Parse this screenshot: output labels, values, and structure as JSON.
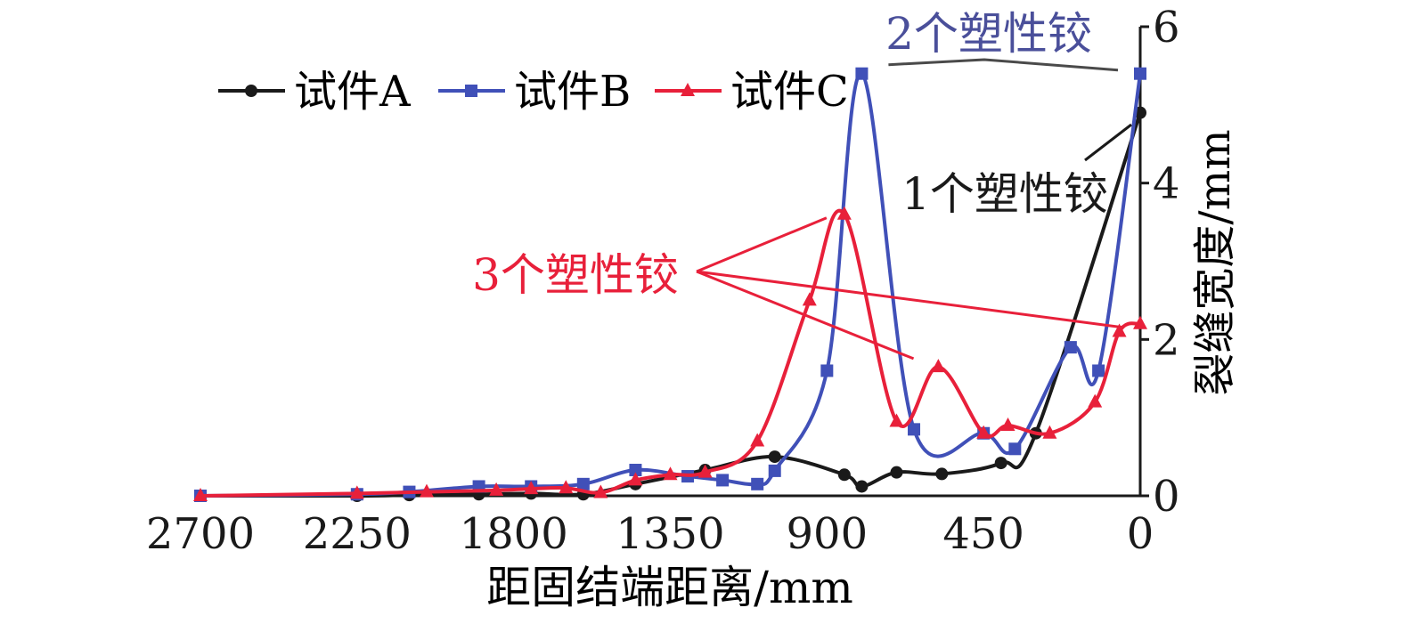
{
  "chart_data": {
    "type": "line",
    "title": "",
    "xlabel": "距固结端距离/mm",
    "ylabel": "裂缝宽度/mm",
    "xlim": [
      2700,
      0
    ],
    "ylim": [
      0,
      6
    ],
    "x_ticks": [
      "2700",
      "2250",
      "1800",
      "1350",
      "900",
      "450",
      "0"
    ],
    "y_ticks": [
      "0",
      "2",
      "4",
      "6"
    ],
    "x_tick_values": [
      2700,
      2250,
      1800,
      1350,
      900,
      450,
      0
    ],
    "y_tick_values": [
      0,
      2,
      4,
      6
    ],
    "grid": false,
    "legend_position": "top-left",
    "series": [
      {
        "name": "试件A",
        "color": "#1a1a1a",
        "marker": "circle",
        "points": [
          [
            2700,
            0.0
          ],
          [
            2250,
            0.0
          ],
          [
            2100,
            0.01
          ],
          [
            1900,
            0.02
          ],
          [
            1750,
            0.03
          ],
          [
            1600,
            0.02
          ],
          [
            1450,
            0.15
          ],
          [
            1250,
            0.33
          ],
          [
            1050,
            0.5
          ],
          [
            850,
            0.27
          ],
          [
            800,
            0.12
          ],
          [
            700,
            0.3
          ],
          [
            570,
            0.28
          ],
          [
            400,
            0.42
          ],
          [
            300,
            0.8
          ],
          [
            0,
            4.9
          ]
        ]
      },
      {
        "name": "试件B",
        "color": "#4050b8",
        "marker": "square",
        "points": [
          [
            2700,
            0.0
          ],
          [
            2250,
            0.02
          ],
          [
            2100,
            0.05
          ],
          [
            1900,
            0.12
          ],
          [
            1750,
            0.12
          ],
          [
            1600,
            0.15
          ],
          [
            1450,
            0.33
          ],
          [
            1300,
            0.25
          ],
          [
            1200,
            0.2
          ],
          [
            1100,
            0.15
          ],
          [
            1050,
            0.32
          ],
          [
            900,
            1.6
          ],
          [
            800,
            5.4
          ],
          [
            650,
            0.85
          ],
          [
            450,
            0.8
          ],
          [
            360,
            0.6
          ],
          [
            200,
            1.9
          ],
          [
            120,
            1.6
          ],
          [
            0,
            5.4
          ]
        ]
      },
      {
        "name": "试件C",
        "color": "#e8203a",
        "marker": "triangle",
        "points": [
          [
            2700,
            0.0
          ],
          [
            2250,
            0.03
          ],
          [
            2050,
            0.05
          ],
          [
            1850,
            0.07
          ],
          [
            1750,
            0.09
          ],
          [
            1650,
            0.1
          ],
          [
            1550,
            0.04
          ],
          [
            1450,
            0.2
          ],
          [
            1350,
            0.27
          ],
          [
            1250,
            0.3
          ],
          [
            1100,
            0.7
          ],
          [
            950,
            2.5
          ],
          [
            850,
            3.6
          ],
          [
            700,
            0.95
          ],
          [
            580,
            1.65
          ],
          [
            450,
            0.8
          ],
          [
            380,
            0.9
          ],
          [
            260,
            0.8
          ],
          [
            130,
            1.2
          ],
          [
            60,
            2.1
          ],
          [
            0,
            2.2
          ]
        ]
      }
    ],
    "annotations": [
      {
        "text": "2个塑性铰",
        "color": "#4a4f9a",
        "targets": [
          [
            800,
            5.4
          ],
          [
            0,
            5.4
          ]
        ]
      },
      {
        "text": "1个塑性铰",
        "color": "#1a1a1a",
        "targets": [
          [
            0,
            5.0
          ]
        ]
      },
      {
        "text": "3个塑性铰",
        "color": "#e8203a",
        "targets": [
          [
            850,
            3.6
          ],
          [
            600,
            1.8
          ],
          [
            0,
            2.2
          ]
        ]
      }
    ]
  }
}
